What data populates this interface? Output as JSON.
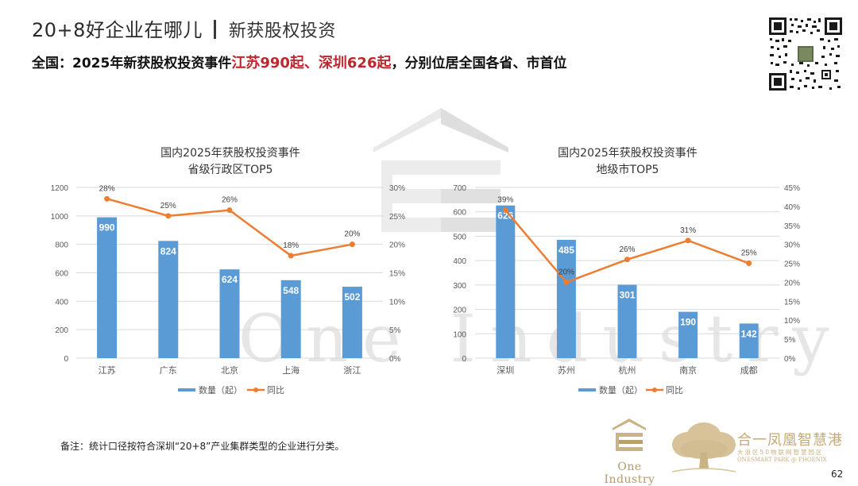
{
  "header": {
    "title": "20+8好企业在哪儿",
    "subtitle": "新获股权投资",
    "headline_prefix": "全国：2025年新获股权投资事件",
    "headline_highlight": "江苏990起、深圳626起",
    "headline_suffix": "，分别位居全国各省、市首位"
  },
  "icons": {
    "qr_code": "qr-code-icon",
    "watermark": "one-industry-house-watermark",
    "logo_one_industry": "one-industry-logo",
    "logo_phoenix": "tree-logo"
  },
  "watermark_text": "One Industry",
  "colors": {
    "bar": "#5b9bd5",
    "line": "#ed7d31",
    "highlight_red": "#c0262d",
    "gold": "#c4aa78",
    "grid": "#d9d9d9",
    "axis_text": "#595959"
  },
  "chart_data": [
    {
      "type": "bar+line",
      "title": "国内2025年获股权投资事件",
      "subtitle": "省级行政区TOP5",
      "categories": [
        "江苏",
        "广东",
        "北京",
        "上海",
        "浙江"
      ],
      "series": [
        {
          "name": "数量（起）",
          "type": "bar",
          "axis": "left",
          "values": [
            990,
            824,
            624,
            548,
            502
          ]
        },
        {
          "name": "同比",
          "type": "line",
          "axis": "right",
          "values": [
            28,
            25,
            26,
            18,
            20
          ],
          "labels": [
            "28%",
            "25%",
            "26%",
            "18%",
            "20%"
          ]
        }
      ],
      "y_left": {
        "min": 0,
        "max": 1200,
        "ticks": [
          "0",
          "200",
          "400",
          "600",
          "800",
          "1000",
          "1200"
        ]
      },
      "y_right": {
        "min": 0,
        "max": 30,
        "ticks": [
          "0%",
          "5%",
          "10%",
          "15%",
          "20%",
          "25%",
          "30%"
        ]
      },
      "legend": [
        "数量（起）",
        "同比"
      ],
      "legend_position": "bottom",
      "grid": true
    },
    {
      "type": "bar+line",
      "title": "国内2025年获股权投资事件",
      "subtitle": "地级市TOP5",
      "categories": [
        "深圳",
        "苏州",
        "杭州",
        "南京",
        "成都"
      ],
      "series": [
        {
          "name": "数量（起）",
          "type": "bar",
          "axis": "left",
          "values": [
            626,
            485,
            301,
            190,
            142
          ]
        },
        {
          "name": "同比",
          "type": "line",
          "axis": "right",
          "values": [
            39,
            20,
            26,
            31,
            25
          ],
          "labels": [
            "39%",
            "20%",
            "26%",
            "31%",
            "25%"
          ]
        }
      ],
      "y_left": {
        "min": 0,
        "max": 700,
        "ticks": [
          "0",
          "100",
          "200",
          "300",
          "400",
          "500",
          "600",
          "700"
        ]
      },
      "y_right": {
        "min": 0,
        "max": 45,
        "ticks": [
          "0%",
          "5%",
          "10%",
          "15%",
          "20%",
          "25%",
          "30%",
          "35%",
          "40%",
          "45%"
        ]
      },
      "legend": [
        "数量（起）",
        "同比"
      ],
      "legend_position": "bottom",
      "grid": true
    }
  ],
  "footer": {
    "note": "备注：统计口径按符合深圳“20+8”产业集群类型的企业进行分类。",
    "logo1_text": "One Industry",
    "logo2_cn": "合一凤凰智慧港",
    "logo2_cn_sub": "大浪区50物联网智慧园区",
    "logo2_en": "ONESMART PARK @ PHOENIX",
    "page_number": "62"
  }
}
